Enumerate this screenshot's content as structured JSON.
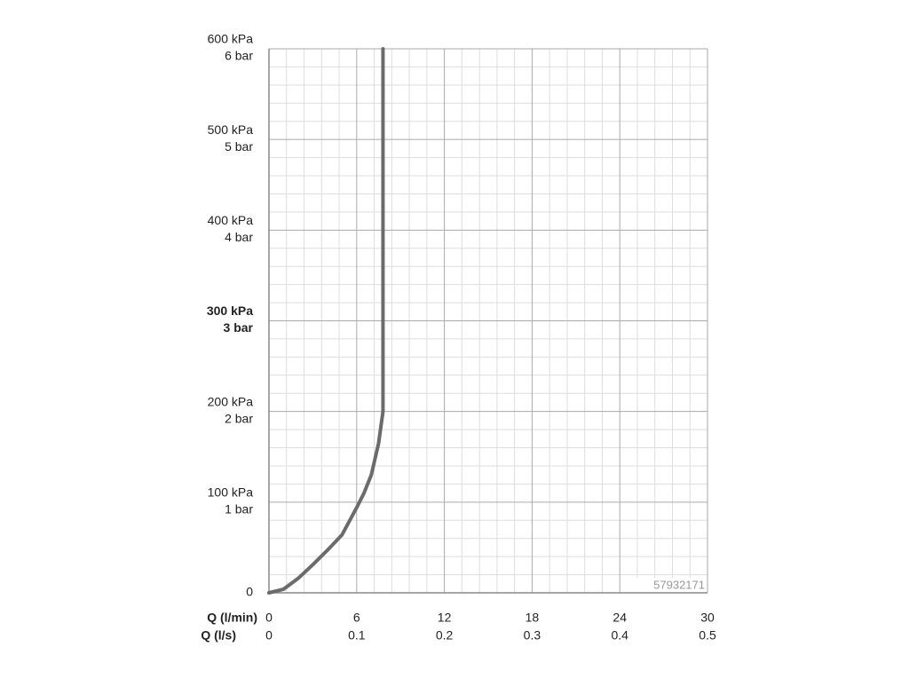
{
  "chart_data": {
    "type": "line",
    "xlabel": "Q (l/min)",
    "x2label": "Q (l/s)",
    "xlim": [
      0,
      30
    ],
    "xticks": [
      0,
      6,
      12,
      18,
      24,
      30
    ],
    "x2lim": [
      0,
      0.5
    ],
    "x2ticks": [
      0,
      0.1,
      0.2,
      0.3,
      0.4,
      0.5
    ],
    "ylim": [
      0,
      600
    ],
    "yticks": [
      0,
      {
        "value": 100,
        "label": "100 kPa"
      },
      {
        "value": 200,
        "label": "200 kPa"
      },
      {
        "value": 300,
        "label": "300 kPa"
      },
      {
        "value": 400,
        "label": "400 kPa"
      },
      {
        "value": 500,
        "label": "500 kPa"
      },
      {
        "value": 600,
        "label": "600 kPa"
      }
    ],
    "ytick_bar_labels": [
      null,
      "1 bar",
      "2 bar",
      "3 bar",
      "4 bar",
      "5 bar",
      "6 bar"
    ],
    "yticks_bold": [
      false,
      false,
      false,
      true,
      false,
      false,
      false
    ],
    "grid": true,
    "watermark": "57932171",
    "series": [
      {
        "color": "#6b6b6b",
        "x": [
          0,
          1,
          2,
          3,
          4,
          5,
          6,
          6.5,
          7,
          7.5,
          7.8,
          7.8
        ],
        "values": [
          0,
          4,
          16,
          31,
          47,
          64,
          94,
          110,
          130,
          165,
          200,
          600
        ]
      }
    ]
  }
}
